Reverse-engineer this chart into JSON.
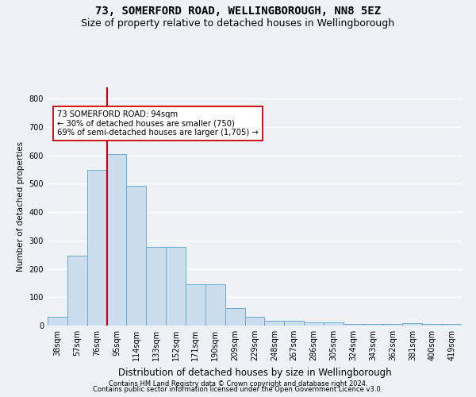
{
  "title": "73, SOMERFORD ROAD, WELLINGBOROUGH, NN8 5EZ",
  "subtitle": "Size of property relative to detached houses in Wellingborough",
  "xlabel": "Distribution of detached houses by size in Wellingborough",
  "ylabel": "Number of detached properties",
  "categories": [
    "38sqm",
    "57sqm",
    "76sqm",
    "95sqm",
    "114sqm",
    "133sqm",
    "152sqm",
    "171sqm",
    "190sqm",
    "209sqm",
    "229sqm",
    "248sqm",
    "267sqm",
    "286sqm",
    "305sqm",
    "324sqm",
    "343sqm",
    "362sqm",
    "381sqm",
    "400sqm",
    "419sqm"
  ],
  "values": [
    32,
    246,
    548,
    605,
    493,
    277,
    277,
    145,
    145,
    62,
    30,
    18,
    18,
    12,
    12,
    5,
    5,
    5,
    8,
    5,
    5
  ],
  "bar_color": "#ccdded",
  "bar_edgecolor": "#6aabd2",
  "highlight_color_edge": "#cc0000",
  "annotation_text": "73 SOMERFORD ROAD: 94sqm\n← 30% of detached houses are smaller (750)\n69% of semi-detached houses are larger (1,705) →",
  "annotation_box_color": "#ffffff",
  "annotation_box_edgecolor": "#cc0000",
  "vline_index": 3,
  "ylim": [
    0,
    840
  ],
  "yticks": [
    0,
    100,
    200,
    300,
    400,
    500,
    600,
    700,
    800
  ],
  "footer1": "Contains HM Land Registry data © Crown copyright and database right 2024.",
  "footer2": "Contains public sector information licensed under the Open Government Licence v3.0.",
  "bg_color": "#eef2f7",
  "plot_bg_color": "#eef2f7",
  "grid_color": "#ffffff",
  "title_fontsize": 10,
  "subtitle_fontsize": 9,
  "xlabel_fontsize": 8.5,
  "ylabel_fontsize": 7.5,
  "tick_fontsize": 7,
  "footer_fontsize": 6
}
